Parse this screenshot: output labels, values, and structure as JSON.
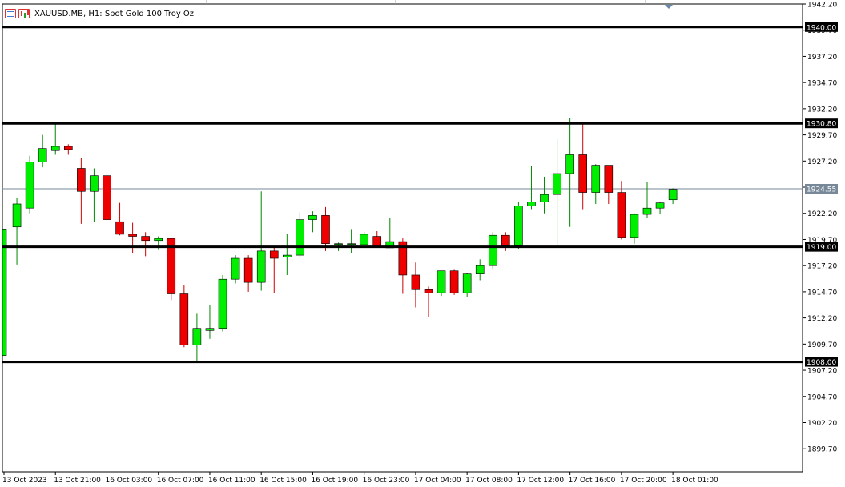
{
  "window": {
    "title": "XAUUSD.MB, H1:  Spot Gold 100 Troy Oz",
    "icons": [
      "quotes-icon",
      "chart-bars-icon"
    ]
  },
  "colors": {
    "bull": "#00ee00",
    "bear": "#ee0000",
    "wick_bull": "#008800",
    "wick_bear": "#cc0000",
    "level_line": "#000000",
    "bid_line": "#778899",
    "axis": "#000000",
    "background": "#ffffff"
  },
  "chart_data": {
    "type": "candlestick",
    "symbol": "XAUUSD.MB",
    "timeframe": "H1",
    "ylim": [
      1897.5,
      1942.2
    ],
    "grid": false,
    "y_ticks": [
      "1942.20",
      "1939.70",
      "1937.20",
      "1934.70",
      "1932.20",
      "1929.70",
      "1927.20",
      "1924.70",
      "1922.20",
      "1919.70",
      "1917.20",
      "1914.70",
      "1912.20",
      "1909.70",
      "1907.20",
      "1904.70",
      "1902.20",
      "1899.70"
    ],
    "x_labels": [
      {
        "index": 0,
        "label": "13 Oct 2023"
      },
      {
        "index": 4,
        "label": "13 Oct 21:00"
      },
      {
        "index": 8,
        "label": "16 Oct 03:00"
      },
      {
        "index": 12,
        "label": "16 Oct 07:00"
      },
      {
        "index": 16,
        "label": "16 Oct 11:00"
      },
      {
        "index": 20,
        "label": "16 Oct 15:00"
      },
      {
        "index": 24,
        "label": "16 Oct 19:00"
      },
      {
        "index": 28,
        "label": "16 Oct 23:00"
      },
      {
        "index": 32,
        "label": "17 Oct 04:00"
      },
      {
        "index": 36,
        "label": "17 Oct 08:00"
      },
      {
        "index": 40,
        "label": "17 Oct 12:00"
      },
      {
        "index": 44,
        "label": "17 Oct 16:00"
      },
      {
        "index": 48,
        "label": "17 Oct 20:00"
      },
      {
        "index": 52,
        "label": "18 Oct 01:00"
      }
    ],
    "levels": [
      {
        "label": "1940.00",
        "value": 1940.0
      },
      {
        "label": "1930.80",
        "value": 1930.8
      },
      {
        "label": "1919.00",
        "value": 1919.0
      },
      {
        "label": "1908.00",
        "value": 1908.0
      }
    ],
    "current_price": {
      "label": "1924.55",
      "value": 1924.55
    },
    "candles": [
      {
        "o": 1908.6,
        "h": 1920.7,
        "l": 1908.6,
        "c": 1920.7
      },
      {
        "o": 1920.9,
        "h": 1923.7,
        "l": 1917.3,
        "c": 1923.1
      },
      {
        "o": 1922.7,
        "h": 1927.7,
        "l": 1922.2,
        "c": 1927.1
      },
      {
        "o": 1927.1,
        "h": 1929.7,
        "l": 1926.6,
        "c": 1928.4
      },
      {
        "o": 1928.2,
        "h": 1930.8,
        "l": 1927.8,
        "c": 1928.6
      },
      {
        "o": 1928.6,
        "h": 1928.8,
        "l": 1927.8,
        "c": 1928.3
      },
      {
        "o": 1926.5,
        "h": 1927.5,
        "l": 1921.2,
        "c": 1924.3
      },
      {
        "o": 1924.3,
        "h": 1926.5,
        "l": 1921.4,
        "c": 1925.8
      },
      {
        "o": 1925.8,
        "h": 1926.1,
        "l": 1921.5,
        "c": 1921.6
      },
      {
        "o": 1921.4,
        "h": 1923.2,
        "l": 1920.1,
        "c": 1920.2
      },
      {
        "o": 1920.2,
        "h": 1921.3,
        "l": 1918.4,
        "c": 1920.0
      },
      {
        "o": 1920.0,
        "h": 1920.4,
        "l": 1918.1,
        "c": 1919.6
      },
      {
        "o": 1919.6,
        "h": 1920.0,
        "l": 1918.7,
        "c": 1919.8
      },
      {
        "o": 1919.8,
        "h": 1919.8,
        "l": 1913.9,
        "c": 1914.5
      },
      {
        "o": 1914.5,
        "h": 1915.3,
        "l": 1909.4,
        "c": 1909.6
      },
      {
        "o": 1909.6,
        "h": 1912.6,
        "l": 1908.0,
        "c": 1911.2
      },
      {
        "o": 1911.0,
        "h": 1913.4,
        "l": 1910.2,
        "c": 1911.2
      },
      {
        "o": 1911.2,
        "h": 1916.3,
        "l": 1910.9,
        "c": 1915.9
      },
      {
        "o": 1915.9,
        "h": 1918.2,
        "l": 1915.5,
        "c": 1917.9
      },
      {
        "o": 1917.9,
        "h": 1918.2,
        "l": 1914.7,
        "c": 1915.6
      },
      {
        "o": 1915.6,
        "h": 1924.3,
        "l": 1914.8,
        "c": 1918.6
      },
      {
        "o": 1918.6,
        "h": 1918.9,
        "l": 1914.6,
        "c": 1917.9
      },
      {
        "o": 1918.0,
        "h": 1920.2,
        "l": 1916.3,
        "c": 1918.2
      },
      {
        "o": 1918.2,
        "h": 1922.3,
        "l": 1918.0,
        "c": 1921.6
      },
      {
        "o": 1921.6,
        "h": 1922.4,
        "l": 1920.4,
        "c": 1922.0
      },
      {
        "o": 1922.0,
        "h": 1922.8,
        "l": 1918.6,
        "c": 1919.3
      },
      {
        "o": 1919.3,
        "h": 1919.4,
        "l": 1918.6,
        "c": 1919.3
      },
      {
        "o": 1919.3,
        "h": 1920.7,
        "l": 1918.4,
        "c": 1919.3
      },
      {
        "o": 1919.2,
        "h": 1920.4,
        "l": 1919.1,
        "c": 1920.2
      },
      {
        "o": 1920.0,
        "h": 1920.5,
        "l": 1918.9,
        "c": 1919.0
      },
      {
        "o": 1918.9,
        "h": 1921.8,
        "l": 1918.9,
        "c": 1919.5
      },
      {
        "o": 1919.5,
        "h": 1919.8,
        "l": 1914.5,
        "c": 1916.3
      },
      {
        "o": 1916.3,
        "h": 1917.5,
        "l": 1913.2,
        "c": 1914.9
      },
      {
        "o": 1914.9,
        "h": 1915.2,
        "l": 1912.3,
        "c": 1914.6
      },
      {
        "o": 1914.6,
        "h": 1916.7,
        "l": 1914.3,
        "c": 1916.7
      },
      {
        "o": 1916.7,
        "h": 1916.8,
        "l": 1914.4,
        "c": 1914.6
      },
      {
        "o": 1914.6,
        "h": 1916.5,
        "l": 1914.2,
        "c": 1916.4
      },
      {
        "o": 1916.4,
        "h": 1917.8,
        "l": 1915.8,
        "c": 1917.2
      },
      {
        "o": 1917.2,
        "h": 1920.4,
        "l": 1916.8,
        "c": 1920.1
      },
      {
        "o": 1920.1,
        "h": 1920.4,
        "l": 1918.6,
        "c": 1919.1
      },
      {
        "o": 1919.1,
        "h": 1923.3,
        "l": 1918.8,
        "c": 1922.9
      },
      {
        "o": 1922.9,
        "h": 1926.7,
        "l": 1922.6,
        "c": 1923.3
      },
      {
        "o": 1923.3,
        "h": 1925.7,
        "l": 1922.2,
        "c": 1924.0
      },
      {
        "o": 1924.0,
        "h": 1929.3,
        "l": 1919.1,
        "c": 1926.0
      },
      {
        "o": 1926.0,
        "h": 1931.3,
        "l": 1920.9,
        "c": 1927.8
      },
      {
        "o": 1927.8,
        "h": 1930.7,
        "l": 1922.6,
        "c": 1924.2
      },
      {
        "o": 1924.2,
        "h": 1926.9,
        "l": 1923.1,
        "c": 1926.8
      },
      {
        "o": 1926.8,
        "h": 1926.8,
        "l": 1923.1,
        "c": 1924.2
      },
      {
        "o": 1924.2,
        "h": 1925.3,
        "l": 1919.7,
        "c": 1919.9
      },
      {
        "o": 1919.9,
        "h": 1922.2,
        "l": 1919.3,
        "c": 1922.1
      },
      {
        "o": 1922.1,
        "h": 1925.2,
        "l": 1921.8,
        "c": 1922.7
      },
      {
        "o": 1922.7,
        "h": 1923.3,
        "l": 1922.1,
        "c": 1923.2
      },
      {
        "o": 1923.5,
        "h": 1924.6,
        "l": 1923.1,
        "c": 1924.5
      }
    ]
  }
}
